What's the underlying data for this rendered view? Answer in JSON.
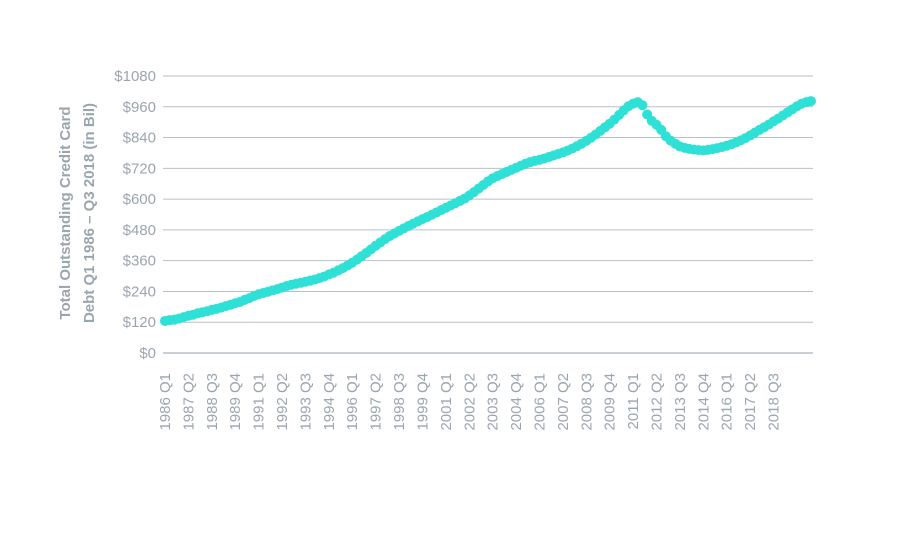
{
  "chart_data": {
    "type": "scatter",
    "ylabel_line1": "Total Outstanding Credit Card",
    "ylabel_line2": "Debt Q1 1986 – Q3 2018 (in Bil)",
    "y_ticks": [
      "$0",
      "$120",
      "$240",
      "$360",
      "$480",
      "$600",
      "$720",
      "$840",
      "$960",
      "$1080"
    ],
    "ylim": [
      0,
      1080
    ],
    "x_tick_labels": [
      "1986 Q1",
      "1987 Q2",
      "1988 Q3",
      "1989 Q4",
      "1991 Q1",
      "1992 Q2",
      "1993 Q3",
      "1994 Q4",
      "1996 Q1",
      "1997 Q2",
      "1998 Q3",
      "1999 Q4",
      "2001 Q1",
      "2002 Q2",
      "2003 Q3",
      "2004 Q4",
      "2006 Q1",
      "2007 Q2",
      "2008 Q3",
      "2009 Q4",
      "2011 Q1",
      "2012 Q2",
      "2013 Q3",
      "2014 Q4",
      "2016 Q1",
      "2017 Q2",
      "2018 Q3"
    ],
    "grid": true,
    "legend": "none",
    "marker_color": "#2ee0d6",
    "axis_color": "#b7c1c7",
    "text_color": "#9aa6ae",
    "series": [
      {
        "start": "1986 Q1",
        "frequency": "quarterly",
        "values": [
          125,
          128,
          130,
          134,
          140,
          145,
          149,
          155,
          159,
          163,
          168,
          172,
          177,
          183,
          188,
          194,
          199,
          207,
          214,
          222,
          229,
          234,
          239,
          244,
          249,
          255,
          261,
          266,
          270,
          274,
          278,
          282,
          286,
          292,
          298,
          306,
          313,
          322,
          331,
          341,
          352,
          364,
          377,
          390,
          404,
          418,
          431,
          444,
          456,
          466,
          476,
          486,
          495,
          504,
          513,
          522,
          530,
          539,
          548,
          557,
          566,
          575,
          584,
          593,
          602,
          614,
          627,
          641,
          655,
          669,
          681,
          690,
          698,
          706,
          714,
          722,
          730,
          738,
          744,
          749,
          753,
          758,
          764,
          770,
          776,
          782,
          789,
          797,
          806,
          816,
          827,
          839,
          852,
          866,
          880,
          894,
          910,
          928,
          946,
          962,
          972,
          978,
          966,
          930,
          905,
          890,
          870,
          845,
          828,
          816,
          805,
          800,
          796,
          793,
          791,
          790,
          792,
          795,
          799,
          803,
          808,
          814,
          821,
          829,
          838,
          848,
          859,
          870,
          880,
          891,
          903,
          914,
          926,
          938,
          950,
          962,
          972,
          978,
          982
        ]
      }
    ]
  }
}
